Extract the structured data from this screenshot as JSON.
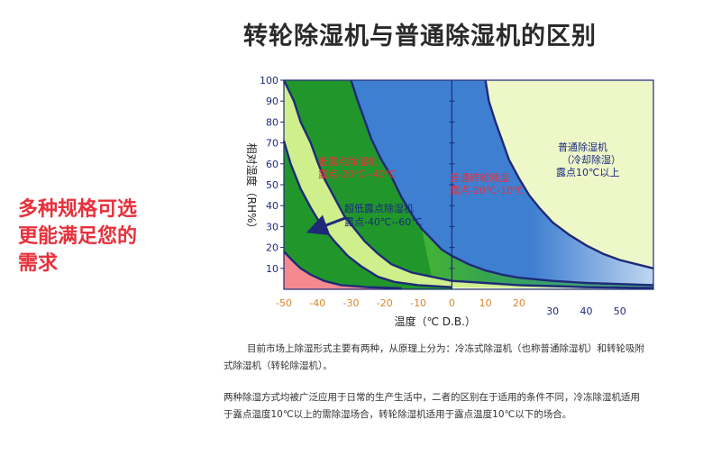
{
  "title": "转轮除湿机与普通除湿机的区别",
  "side_lines": [
    "多种规格可选",
    "更能满足您的",
    "需求"
  ],
  "paragraphs": [
    [
      "目前市场上除湿形式主要有两种，从原理上分为：冷冻式除湿机（也称普通除湿机）和转轮吸附",
      "式除湿机（转轮除湿机）。"
    ],
    [
      "两种除湿方式均被广泛应用于日常的生产生活中，二者的区别在于适用的条件不同，冷冻除湿机适用",
      "于露点温度10℃以上的需除湿场合，转轮除湿机适用于露点温度10℃以下的场合。"
    ]
  ],
  "chart_data": {
    "type": "area",
    "xlabel": "温度（℃ D.B.）",
    "ylabel": "相对湿度（RH%）",
    "xlim": [
      -50,
      60
    ],
    "ylim": [
      0,
      100
    ],
    "x_ticks": [
      -50,
      -40,
      -30,
      -20,
      -10,
      0,
      10,
      20,
      30,
      40,
      50
    ],
    "y_ticks": [
      10,
      20,
      30,
      40,
      50,
      60,
      70,
      80,
      90,
      100
    ],
    "grid": false,
    "regions": [
      {
        "name": "低露点除湿机",
        "detail": "露点-20℃--40℃",
        "color": "#e8303c"
      },
      {
        "name": "超低露点除湿机",
        "detail": "露点-40℃--60℃",
        "color": "#1a2a80"
      },
      {
        "name": "普通转轮除湿",
        "detail": "露点-20℃-10℃",
        "color": "#e8303c"
      },
      {
        "name": "普通除湿机",
        "detail_lines": [
          "（冷却除湿）",
          "露点10℃以上"
        ],
        "color": "#1a2a80"
      }
    ],
    "curves": [
      {
        "points": [
          [
            -50,
            18
          ],
          [
            -47,
            13
          ],
          [
            -45,
            10
          ],
          [
            -42,
            7
          ],
          [
            -38,
            4
          ],
          [
            -33,
            2
          ],
          [
            -25,
            1
          ],
          [
            -15,
            0.5
          ]
        ]
      },
      {
        "points": [
          [
            -50,
            71
          ],
          [
            -48,
            60
          ],
          [
            -45,
            48
          ],
          [
            -42,
            39
          ],
          [
            -39,
            31
          ],
          [
            -35,
            23
          ],
          [
            -31,
            16
          ],
          [
            -27,
            11
          ],
          [
            -22,
            6
          ],
          [
            -17,
            3.5
          ],
          [
            -10,
            2
          ],
          [
            0,
            1
          ]
        ]
      },
      {
        "points": [
          [
            -50,
            100
          ],
          [
            -47,
            90
          ],
          [
            -45,
            80
          ],
          [
            -42,
            70
          ],
          [
            -40,
            61
          ],
          [
            -38,
            53
          ],
          [
            -35,
            44
          ],
          [
            -32,
            35
          ],
          [
            -29,
            29
          ],
          [
            -26,
            23
          ],
          [
            -22,
            17
          ],
          [
            -18,
            12
          ],
          [
            -12,
            8
          ],
          [
            -6,
            6
          ],
          [
            0,
            4
          ],
          [
            10,
            3
          ],
          [
            20,
            2
          ],
          [
            30,
            1.5
          ],
          [
            40,
            1
          ],
          [
            60,
            0.6
          ]
        ]
      },
      {
        "points": [
          [
            -30,
            100
          ],
          [
            -28,
            90
          ],
          [
            -26,
            81
          ],
          [
            -24,
            72
          ],
          [
            -21,
            62
          ],
          [
            -18,
            54
          ],
          [
            -15,
            44
          ],
          [
            -12,
            36
          ],
          [
            -9,
            29
          ],
          [
            -6,
            24
          ],
          [
            -3,
            19
          ],
          [
            0,
            16
          ],
          [
            5,
            12
          ],
          [
            10,
            9
          ],
          [
            15,
            7
          ],
          [
            20,
            5.5
          ],
          [
            30,
            4
          ],
          [
            40,
            3
          ],
          [
            60,
            2
          ]
        ]
      },
      {
        "points": [
          [
            10,
            100
          ],
          [
            11,
            90
          ],
          [
            13,
            80
          ],
          [
            15,
            71
          ],
          [
            17,
            62
          ],
          [
            20,
            53
          ],
          [
            23,
            45
          ],
          [
            26,
            39
          ],
          [
            30,
            32
          ],
          [
            35,
            26
          ],
          [
            40,
            21
          ],
          [
            45,
            17
          ],
          [
            50,
            14
          ],
          [
            55,
            12
          ],
          [
            60,
            10
          ]
        ]
      }
    ],
    "colors": {
      "green_dark": "#21972b",
      "green_mid": "#5fcb3a",
      "green_light": "#cfef8c",
      "yellow_pale": "#eef7c8",
      "blue": "#3f7fd1",
      "blue_light": "#bfd6f0",
      "pink": "#f4898f",
      "curve": "#1e2a78",
      "x_tick": "#d9842b",
      "x_tick_inner": "#ffffff"
    }
  }
}
